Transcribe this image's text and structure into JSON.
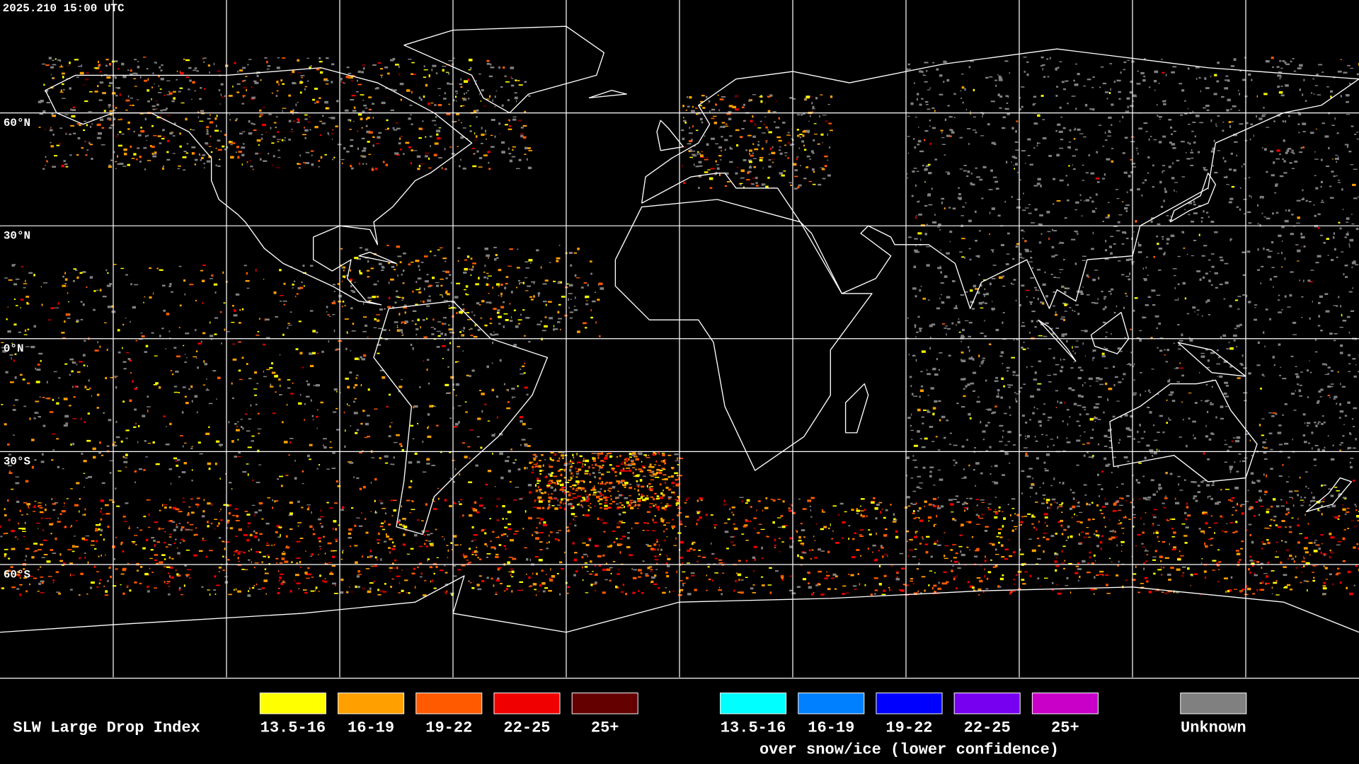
{
  "header": {
    "timestamp": "2025.210 15:00 UTC"
  },
  "map": {
    "latitude_labels": [
      "60°N",
      "30°N",
      "0°N",
      "30°S",
      "60°S"
    ]
  },
  "legend": {
    "title": "SLW Large Drop Index",
    "items": [
      {
        "label": "13.5-16",
        "color": "#ffff00"
      },
      {
        "label": "16-19",
        "color": "#ffa000"
      },
      {
        "label": "19-22",
        "color": "#ff5a00"
      },
      {
        "label": "22-25",
        "color": "#f00000"
      },
      {
        "label": "25+",
        "color": "#640000"
      }
    ],
    "snow_ice_items": [
      {
        "label": "13.5-16",
        "color": "#00ffff"
      },
      {
        "label": "16-19",
        "color": "#0080ff"
      },
      {
        "label": "19-22",
        "color": "#0000ff"
      },
      {
        "label": "22-25",
        "color": "#7800f0"
      },
      {
        "label": "25+",
        "color": "#c800c8"
      }
    ],
    "snow_ice_note": "over snow/ice (lower confidence)",
    "unknown": {
      "label": "Unknown",
      "color": "#808080"
    }
  }
}
